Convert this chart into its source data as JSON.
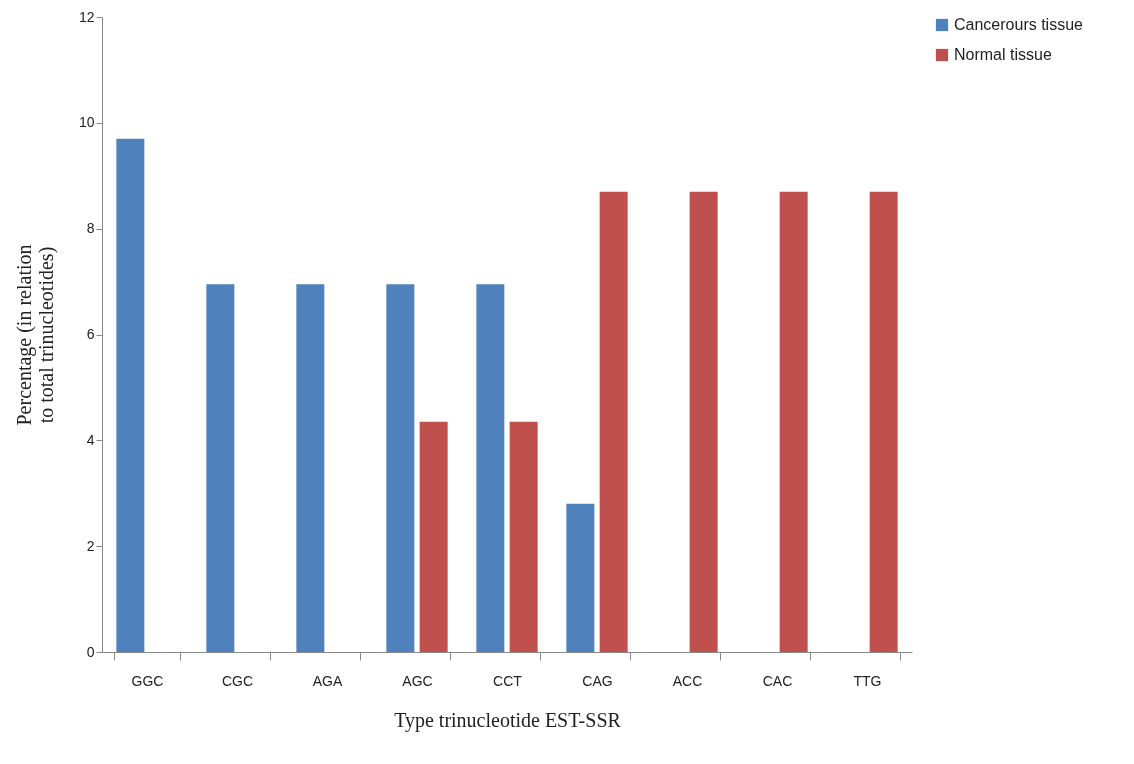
{
  "chart_data": {
    "type": "bar",
    "xlabel": "Type trinucleotide EST-SSR",
    "ylabel": "Percentage (in relation to total trinucleotides)",
    "categories": [
      "GGC",
      "CGC",
      "AGA",
      "AGC",
      "CCT",
      "CAG",
      "ACC",
      "CAC",
      "TTG"
    ],
    "series": [
      {
        "name": "Cancerours tissue",
        "color": "#4f81bd",
        "values": [
          9.7,
          6.95,
          6.95,
          6.95,
          6.95,
          2.8,
          null,
          null,
          null
        ]
      },
      {
        "name": "Normal tissue",
        "color": "#c0504d",
        "values": [
          null,
          null,
          null,
          4.35,
          4.35,
          8.7,
          8.7,
          8.7,
          8.7
        ]
      }
    ],
    "ylim": [
      0,
      12
    ],
    "yticks": [
      0,
      2,
      4,
      6,
      8,
      10,
      12
    ],
    "grid": false,
    "legend": "right"
  }
}
